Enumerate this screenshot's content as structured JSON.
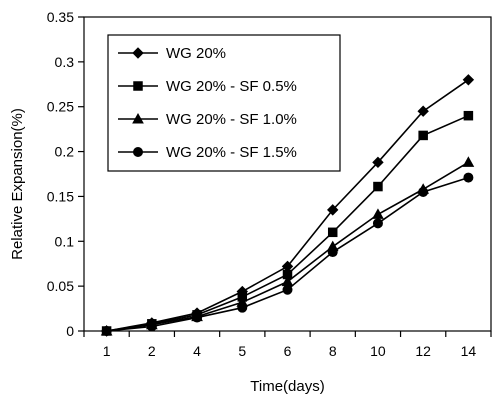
{
  "chart_data": {
    "type": "line",
    "title": "",
    "xlabel": "Time(days)",
    "ylabel": "Relative Expansion(%)",
    "categories": [
      "1",
      "2",
      "4",
      "5",
      "6",
      "8",
      "10",
      "12",
      "14"
    ],
    "ylim": [
      0,
      0.35
    ],
    "yticks": [
      "0",
      "0.05",
      "0.1",
      "0.15",
      "0.2",
      "0.25",
      "0.3",
      "0.35"
    ],
    "grid": false,
    "legend_position": "top-left",
    "series": [
      {
        "name": "WG 20%",
        "marker": "diamond",
        "values": [
          0,
          0.009,
          0.02,
          0.044,
          0.072,
          0.135,
          0.188,
          0.245,
          0.28
        ]
      },
      {
        "name": "WG 20% - SF 0.5%",
        "marker": "square",
        "values": [
          0,
          0.008,
          0.018,
          0.038,
          0.063,
          0.11,
          0.161,
          0.218,
          0.24
        ]
      },
      {
        "name": "WG 20% - SF 1.0%",
        "marker": "triangle",
        "values": [
          0,
          0.007,
          0.016,
          0.032,
          0.055,
          0.094,
          0.13,
          0.158,
          0.188
        ]
      },
      {
        "name": "WG 20% - SF 1.5%",
        "marker": "circle",
        "values": [
          0,
          0.005,
          0.015,
          0.026,
          0.046,
          0.088,
          0.12,
          0.155,
          0.171
        ]
      }
    ]
  }
}
